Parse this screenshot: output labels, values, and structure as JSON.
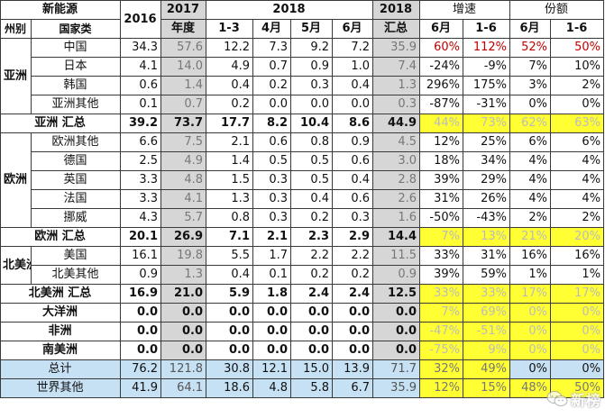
{
  "header": {
    "row1": [
      "新能源",
      "2016",
      "2017",
      "2018",
      "2018",
      "增速",
      "份额"
    ],
    "row2": [
      "州别",
      "国家类",
      "年度",
      "1-3",
      "4月",
      "5月",
      "6月",
      "汇总",
      "6月",
      "1-6",
      "6月",
      "1-6"
    ]
  },
  "rows": [
    {
      "region": "亚洲",
      "name": "中国",
      "v": [
        "34.3",
        "57.6",
        "12.2",
        "7.3",
        "9.2",
        "7.2",
        "35.9",
        "60%",
        "112%",
        "52%",
        "50%"
      ]
    },
    {
      "name": "日本",
      "v": [
        "4.1",
        "14.0",
        "4.9",
        "0.7",
        "0.9",
        "1.0",
        "7.4",
        "-24%",
        "-9%",
        "7%",
        "10%"
      ]
    },
    {
      "name": "韩国",
      "v": [
        "0.6",
        "1.4",
        "0.4",
        "0.2",
        "0.3",
        "0.4",
        "1.3",
        "296%",
        "175%",
        "3%",
        "2%"
      ]
    },
    {
      "name": "亚洲其他",
      "v": [
        "0.1",
        "0.7",
        "0.2",
        "0.0",
        "0.0",
        "0.0",
        "0.3",
        "-87%",
        "-31%",
        "0%",
        "0%"
      ]
    },
    {
      "sub": "亚洲 汇总",
      "v": [
        "39.2",
        "73.7",
        "17.7",
        "8.2",
        "10.4",
        "8.6",
        "44.9",
        "44%",
        "73%",
        "62%",
        "63%"
      ]
    },
    {
      "region": "欧洲",
      "name": "欧洲其他",
      "v": [
        "6.6",
        "7.5",
        "2.1",
        "0.6",
        "0.8",
        "0.9",
        "4.5",
        "12%",
        "25%",
        "6%",
        "6%"
      ]
    },
    {
      "name": "德国",
      "v": [
        "2.5",
        "4.9",
        "1.4",
        "0.5",
        "0.5",
        "0.6",
        "3.0",
        "18%",
        "34%",
        "4%",
        "4%"
      ]
    },
    {
      "name": "英国",
      "v": [
        "3.3",
        "4.8",
        "1.5",
        "0.3",
        "0.5",
        "0.4",
        "2.8",
        "39%",
        "29%",
        "4%",
        "4%"
      ]
    },
    {
      "name": "法国",
      "v": [
        "3.3",
        "4.1",
        "1.3",
        "0.3",
        "0.4",
        "0.6",
        "2.6",
        "31%",
        "26%",
        "4%",
        "4%"
      ]
    },
    {
      "name": "挪威",
      "v": [
        "4.3",
        "5.7",
        "0.8",
        "0.3",
        "0.2",
        "0.3",
        "1.6",
        "-50%",
        "-43%",
        "2%",
        "2%"
      ]
    },
    {
      "sub": "欧洲 汇总",
      "v": [
        "20.1",
        "26.9",
        "7.1",
        "2.1",
        "2.3",
        "2.9",
        "14.4",
        "7%",
        "13%",
        "21%",
        "20%"
      ]
    },
    {
      "region": "北美洲",
      "name": "美国",
      "v": [
        "16.1",
        "19.8",
        "5.5",
        "1.7",
        "2.2",
        "2.2",
        "11.5",
        "33%",
        "31%",
        "16%",
        "16%"
      ]
    },
    {
      "name": "北美其他",
      "v": [
        "0.9",
        "1.3",
        "0.4",
        "0.1",
        "0.2",
        "0.2",
        "0.9",
        "39%",
        "59%",
        "1%",
        "1%"
      ]
    },
    {
      "sub": "北美洲 汇总",
      "v": [
        "16.9",
        "21.0",
        "5.9",
        "1.8",
        "2.4",
        "2.4",
        "12.5",
        "33%",
        "33%",
        "17%",
        "17%"
      ]
    },
    {
      "sub": "大洋洲",
      "v": [
        "0.0",
        "0.0",
        "0.0",
        "0.0",
        "0.0",
        "0.0",
        "0.0",
        "7%",
        "69%",
        "0%",
        "0%"
      ]
    },
    {
      "sub": "非洲",
      "v": [
        "0.0",
        "0.0",
        "0.0",
        "0.0",
        "0.0",
        "0.0",
        "0.0",
        "-47%",
        "-51%",
        "0%",
        "0%"
      ]
    },
    {
      "sub": "南美洲",
      "v": [
        "0.0",
        "0.0",
        "0.0",
        "0.0",
        "0.0",
        "0.0",
        "0.0",
        "-75%",
        "9%",
        "0%",
        "0%"
      ]
    },
    {
      "total": "总计",
      "v": [
        "76.2",
        "121.8",
        "30.8",
        "12.1",
        "15.0",
        "13.9",
        "71.7",
        "32%",
        "49%",
        "0%",
        "0%"
      ]
    },
    {
      "total": "世界其他",
      "v": [
        "41.9",
        "64.1",
        "18.6",
        "4.8",
        "5.8",
        "6.7",
        "35.9",
        "12%",
        "15%",
        "48%",
        "50%"
      ]
    }
  ],
  "watermark": {
    "text": "新榜",
    "icon": "wechat-icon"
  }
}
